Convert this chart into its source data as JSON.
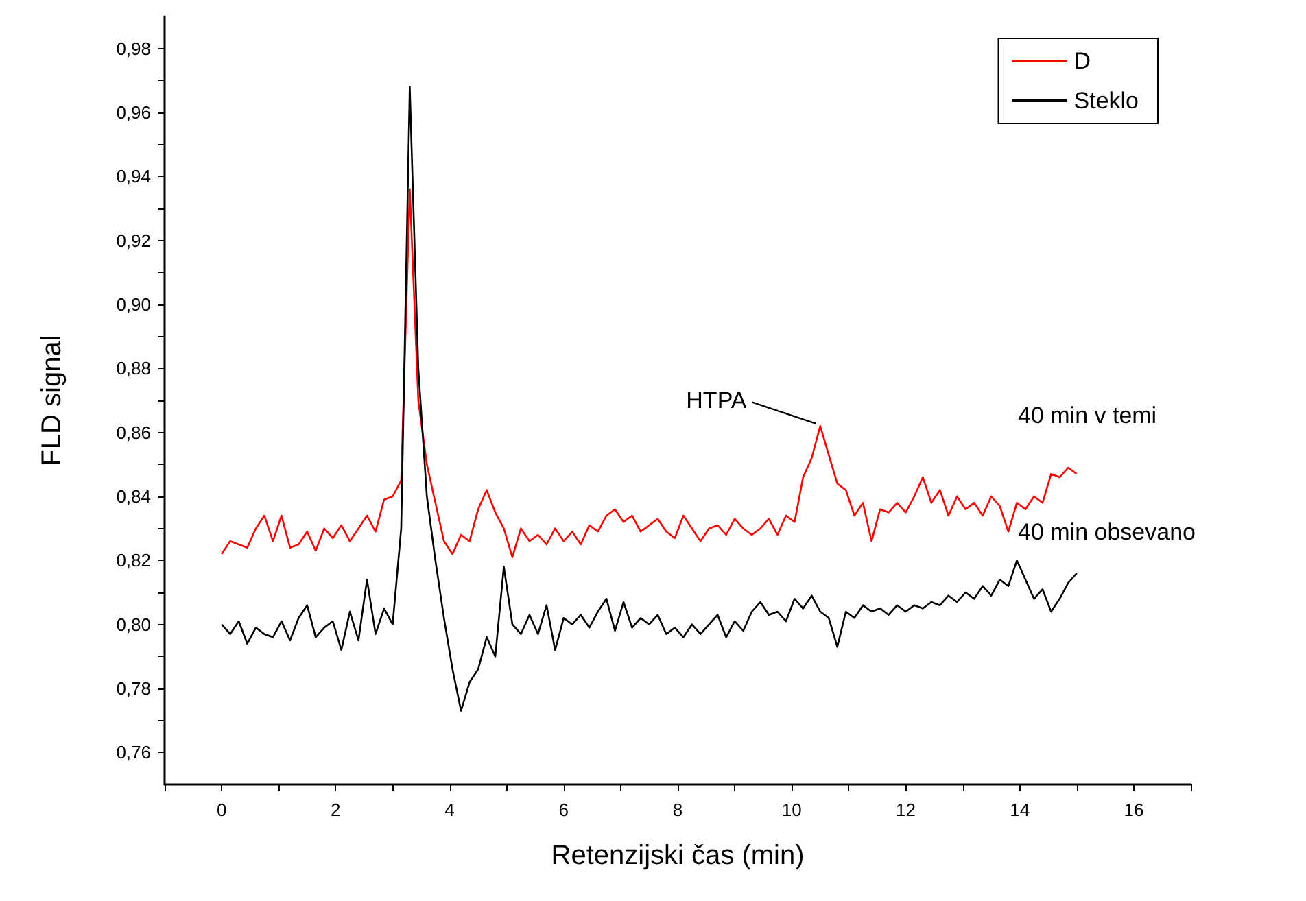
{
  "chart_data": {
    "type": "line",
    "xlabel": "Retenzijski čas (min)",
    "ylabel": "FLD signal",
    "x": [
      0,
      0.15,
      0.3,
      0.45,
      0.6,
      0.75,
      0.9,
      1.05,
      1.2,
      1.35,
      1.5,
      1.65,
      1.8,
      1.95,
      2.1,
      2.25,
      2.4,
      2.55,
      2.7,
      2.85,
      3.0,
      3.15,
      3.3,
      3.45,
      3.6,
      3.75,
      3.9,
      4.05,
      4.2,
      4.35,
      4.5,
      4.65,
      4.8,
      4.95,
      5.1,
      5.25,
      5.4,
      5.55,
      5.7,
      5.85,
      6.0,
      6.15,
      6.3,
      6.45,
      6.6,
      6.75,
      6.9,
      7.05,
      7.2,
      7.35,
      7.5,
      7.65,
      7.8,
      7.95,
      8.1,
      8.25,
      8.4,
      8.55,
      8.7,
      8.85,
      9.0,
      9.15,
      9.3,
      9.45,
      9.6,
      9.75,
      9.9,
      10.05,
      10.2,
      10.35,
      10.5,
      10.65,
      10.8,
      10.95,
      11.1,
      11.25,
      11.4,
      11.55,
      11.7,
      11.85,
      12.0,
      12.15,
      12.3,
      12.45,
      12.6,
      12.75,
      12.9,
      13.05,
      13.2,
      13.35,
      13.5,
      13.65,
      13.8,
      13.95,
      14.1,
      14.25,
      14.4,
      14.55,
      14.7,
      14.85,
      15.0
    ],
    "series": [
      {
        "name": "D",
        "color": "#ff0000",
        "values": [
          0.822,
          0.826,
          0.825,
          0.824,
          0.83,
          0.834,
          0.826,
          0.834,
          0.824,
          0.825,
          0.829,
          0.823,
          0.83,
          0.827,
          0.831,
          0.826,
          0.83,
          0.834,
          0.829,
          0.839,
          0.84,
          0.845,
          0.936,
          0.87,
          0.85,
          0.838,
          0.826,
          0.822,
          0.828,
          0.826,
          0.836,
          0.842,
          0.835,
          0.83,
          0.821,
          0.83,
          0.826,
          0.828,
          0.825,
          0.83,
          0.826,
          0.829,
          0.825,
          0.831,
          0.829,
          0.834,
          0.836,
          0.832,
          0.834,
          0.829,
          0.831,
          0.833,
          0.829,
          0.827,
          0.834,
          0.83,
          0.826,
          0.83,
          0.831,
          0.828,
          0.833,
          0.83,
          0.828,
          0.83,
          0.833,
          0.828,
          0.834,
          0.832,
          0.846,
          0.852,
          0.862,
          0.853,
          0.844,
          0.842,
          0.834,
          0.838,
          0.826,
          0.836,
          0.835,
          0.838,
          0.835,
          0.84,
          0.846,
          0.838,
          0.842,
          0.834,
          0.84,
          0.836,
          0.838,
          0.834,
          0.84,
          0.837,
          0.829,
          0.838,
          0.836,
          0.84,
          0.838,
          0.847,
          0.846,
          0.849,
          0.847
        ]
      },
      {
        "name": "Steklo",
        "color": "#000000",
        "values": [
          0.8,
          0.797,
          0.801,
          0.794,
          0.799,
          0.797,
          0.796,
          0.801,
          0.795,
          0.802,
          0.806,
          0.796,
          0.799,
          0.801,
          0.792,
          0.804,
          0.795,
          0.814,
          0.797,
          0.805,
          0.8,
          0.83,
          0.968,
          0.88,
          0.84,
          0.82,
          0.802,
          0.786,
          0.773,
          0.782,
          0.786,
          0.796,
          0.79,
          0.818,
          0.8,
          0.797,
          0.803,
          0.797,
          0.806,
          0.792,
          0.802,
          0.8,
          0.803,
          0.799,
          0.804,
          0.808,
          0.798,
          0.807,
          0.799,
          0.802,
          0.8,
          0.803,
          0.797,
          0.799,
          0.796,
          0.8,
          0.797,
          0.8,
          0.803,
          0.796,
          0.801,
          0.798,
          0.804,
          0.807,
          0.803,
          0.804,
          0.801,
          0.808,
          0.805,
          0.809,
          0.804,
          0.802,
          0.793,
          0.804,
          0.802,
          0.806,
          0.804,
          0.805,
          0.803,
          0.806,
          0.804,
          0.806,
          0.805,
          0.807,
          0.806,
          0.809,
          0.807,
          0.81,
          0.808,
          0.812,
          0.809,
          0.814,
          0.812,
          0.82,
          0.814,
          0.808,
          0.811,
          0.804,
          0.808,
          0.813,
          0.816
        ]
      }
    ],
    "xlim": [
      -1,
      17
    ],
    "xticks": [
      {
        "value": -1,
        "label": null
      },
      0,
      {
        "value": 1,
        "label": null
      },
      2,
      {
        "value": 3,
        "label": null
      },
      4,
      {
        "value": 5,
        "label": null
      },
      6,
      {
        "value": 7,
        "label": null
      },
      8,
      {
        "value": 9,
        "label": null
      },
      10,
      {
        "value": 11,
        "label": null
      },
      12,
      {
        "value": 13,
        "label": null
      },
      14,
      {
        "value": 15,
        "label": null
      },
      16,
      {
        "value": 17,
        "label": null
      }
    ],
    "ylim": [
      0.75,
      0.99
    ],
    "yticks": [
      {
        "value": 0.76,
        "label": "0,76"
      },
      {
        "value": 0.77,
        "label": null
      },
      {
        "value": 0.78,
        "label": "0,78"
      },
      {
        "value": 0.79,
        "label": null
      },
      {
        "value": 0.8,
        "label": "0,80"
      },
      {
        "value": 0.81,
        "label": null
      },
      {
        "value": 0.82,
        "label": "0,82"
      },
      {
        "value": 0.83,
        "label": null
      },
      {
        "value": 0.84,
        "label": "0,84"
      },
      {
        "value": 0.85,
        "label": null
      },
      {
        "value": 0.86,
        "label": "0,86"
      },
      {
        "value": 0.87,
        "label": null
      },
      {
        "value": 0.88,
        "label": "0,88"
      },
      {
        "value": 0.89,
        "label": null
      },
      {
        "value": 0.9,
        "label": "0,90"
      },
      {
        "value": 0.91,
        "label": null
      },
      {
        "value": 0.92,
        "label": "0,92"
      },
      {
        "value": 0.93,
        "label": null
      },
      {
        "value": 0.94,
        "label": "0,94"
      },
      {
        "value": 0.95,
        "label": null
      },
      {
        "value": 0.96,
        "label": "0,96"
      },
      {
        "value": 0.97,
        "label": null
      },
      {
        "value": 0.98,
        "label": "0,98"
      }
    ],
    "annotations": [
      {
        "text": "HTPA",
        "x": 10.5,
        "y": 0.862
      },
      "40 min v temi",
      "40 min obsevano"
    ],
    "grid": false,
    "legend": "top right",
    "marker": "none",
    "line_style": "solid"
  }
}
